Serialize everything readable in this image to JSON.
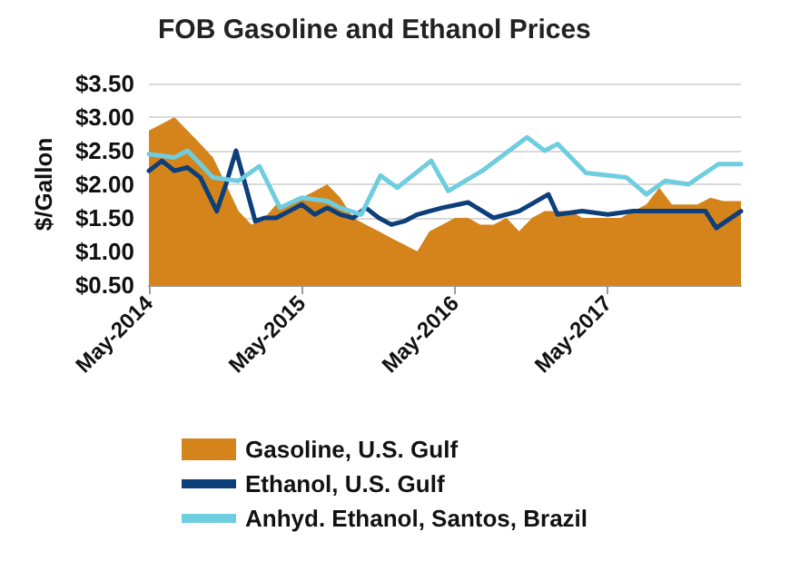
{
  "chart_data": {
    "type": "line",
    "title": "FOB Gasoline and Ethanol Prices",
    "ylabel": "$/Gallon",
    "xlim": [
      "2014-05-01",
      "2018-03-15"
    ],
    "xticks": [
      {
        "value": "2014-05-01",
        "label": "May-2014"
      },
      {
        "value": "2015-05-01",
        "label": "May-2015"
      },
      {
        "value": "2016-05-01",
        "label": "May-2016"
      },
      {
        "value": "2017-05-01",
        "label": "May-2017"
      }
    ],
    "ylim": [
      0.5,
      3.5
    ],
    "yticks": [
      {
        "value": 0.5,
        "label": "$0.50"
      },
      {
        "value": 1.0,
        "label": "$1.00"
      },
      {
        "value": 1.5,
        "label": "$1.50"
      },
      {
        "value": 2.0,
        "label": "$2.00"
      },
      {
        "value": 2.5,
        "label": "$2.50"
      },
      {
        "value": 3.0,
        "label": "$3.00"
      },
      {
        "value": 3.5,
        "label": "$3.50"
      }
    ],
    "grid": "y",
    "legend": "bottom",
    "marker": "none",
    "series": [
      {
        "name": "Gasoline, U.S. Gulf",
        "type": "area",
        "color": "#d4841a",
        "x": [
          "2014-05-01",
          "2014-06-01",
          "2014-07-01",
          "2014-08-01",
          "2014-09-01",
          "2014-10-01",
          "2014-11-01",
          "2014-12-01",
          "2015-01-01",
          "2015-02-01",
          "2015-03-01",
          "2015-04-01",
          "2015-05-01",
          "2015-06-01",
          "2015-07-01",
          "2015-08-01",
          "2015-09-01",
          "2015-10-01",
          "2015-11-01",
          "2015-12-01",
          "2016-01-01",
          "2016-02-01",
          "2016-03-01",
          "2016-04-01",
          "2016-05-01",
          "2016-06-01",
          "2016-07-01",
          "2016-08-01",
          "2016-09-01",
          "2016-10-01",
          "2016-11-01",
          "2016-12-01",
          "2017-01-01",
          "2017-02-01",
          "2017-03-01",
          "2017-04-01",
          "2017-05-01",
          "2017-06-01",
          "2017-07-01",
          "2017-08-01",
          "2017-09-01",
          "2017-10-01",
          "2017-11-01",
          "2017-12-01",
          "2018-01-01",
          "2018-02-01",
          "2018-03-15"
        ],
        "values": [
          2.8,
          2.9,
          3.0,
          2.8,
          2.6,
          2.4,
          2.0,
          1.6,
          1.4,
          1.5,
          1.7,
          1.7,
          1.8,
          1.9,
          2.0,
          1.8,
          1.5,
          1.4,
          1.3,
          1.2,
          1.1,
          1.0,
          1.3,
          1.4,
          1.5,
          1.5,
          1.4,
          1.4,
          1.5,
          1.3,
          1.5,
          1.6,
          1.6,
          1.6,
          1.5,
          1.5,
          1.5,
          1.5,
          1.6,
          1.7,
          1.95,
          1.7,
          1.7,
          1.7,
          1.8,
          1.75,
          1.75
        ]
      },
      {
        "name": "Ethanol, U.S. Gulf",
        "color": "#0d3f7a",
        "x": [
          "2014-05-01",
          "2014-06-01",
          "2014-07-01",
          "2014-08-01",
          "2014-09-01",
          "2014-10-10",
          "2014-11-01",
          "2014-11-25",
          "2015-01-10",
          "2015-02-01",
          "2015-03-01",
          "2015-04-01",
          "2015-05-01",
          "2015-06-01",
          "2015-07-01",
          "2015-08-01",
          "2015-09-01",
          "2015-10-01",
          "2015-11-01",
          "2015-12-01",
          "2016-01-01",
          "2016-02-01",
          "2016-03-01",
          "2016-04-01",
          "2016-06-01",
          "2016-08-01",
          "2016-10-01",
          "2016-12-10",
          "2017-01-01",
          "2017-03-01",
          "2017-05-01",
          "2017-07-01",
          "2017-09-01",
          "2017-11-01",
          "2017-12-20",
          "2018-01-15",
          "2018-03-15"
        ],
        "values": [
          2.2,
          2.35,
          2.2,
          2.25,
          2.1,
          1.6,
          2.0,
          2.5,
          1.45,
          1.5,
          1.5,
          1.6,
          1.7,
          1.55,
          1.65,
          1.55,
          1.5,
          1.65,
          1.5,
          1.4,
          1.45,
          1.55,
          1.6,
          1.65,
          1.73,
          1.5,
          1.6,
          1.85,
          1.55,
          1.6,
          1.55,
          1.6,
          1.6,
          1.6,
          1.6,
          1.35,
          1.6
        ]
      },
      {
        "name": "Anhyd. Ethanol, Santos, Brazil",
        "color": "#6fcde0",
        "x": [
          "2014-05-01",
          "2014-07-01",
          "2014-08-01",
          "2014-09-01",
          "2014-10-01",
          "2014-12-01",
          "2015-01-20",
          "2015-03-10",
          "2015-05-01",
          "2015-07-01",
          "2015-08-01",
          "2015-09-20",
          "2015-11-05",
          "2015-12-15",
          "2016-03-05",
          "2016-04-15",
          "2016-07-05",
          "2016-10-20",
          "2016-12-01",
          "2017-01-01",
          "2017-03-10",
          "2017-06-15",
          "2017-08-01",
          "2017-09-15",
          "2017-11-10",
          "2018-01-20",
          "2018-03-15"
        ],
        "values": [
          2.45,
          2.4,
          2.5,
          2.3,
          2.1,
          2.05,
          2.27,
          1.65,
          1.8,
          1.75,
          1.65,
          1.55,
          2.13,
          1.95,
          2.35,
          1.9,
          2.2,
          2.7,
          2.5,
          2.6,
          2.17,
          2.1,
          1.85,
          2.05,
          2.0,
          2.3,
          2.3
        ]
      }
    ]
  }
}
